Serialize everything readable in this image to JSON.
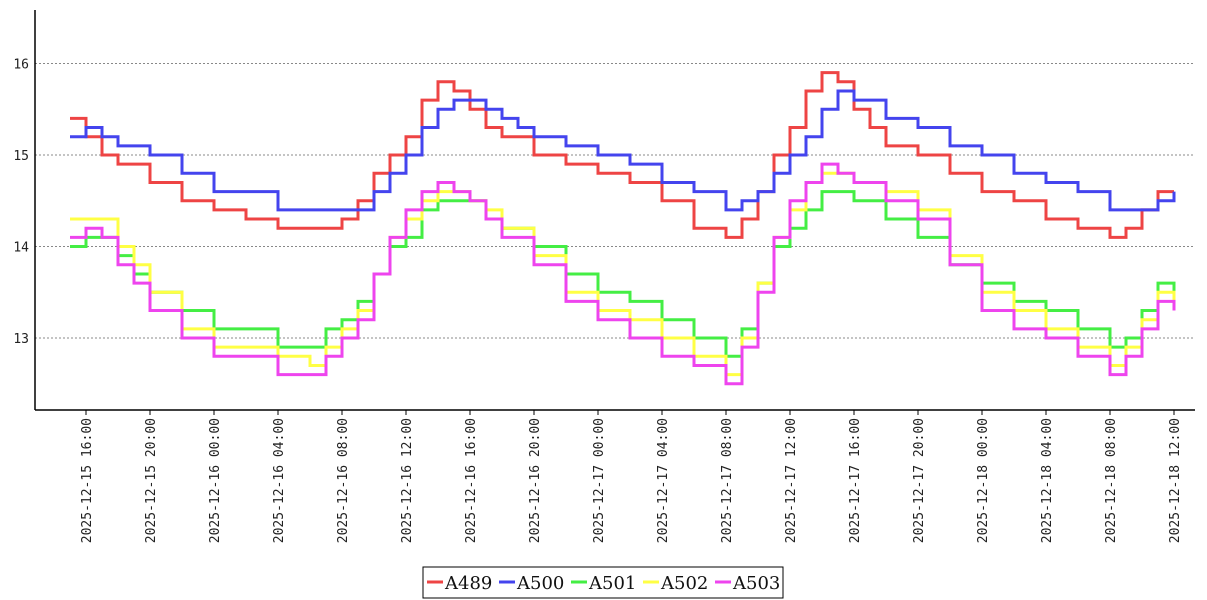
{
  "chart_data": {
    "type": "line",
    "title": "",
    "xlabel": "",
    "ylabel": "",
    "x_range": [
      "2025-12-15 14:00",
      "2025-12-18 12:00"
    ],
    "ylim": [
      12.2,
      16.6
    ],
    "yticks": [
      13,
      14,
      15,
      16
    ],
    "grid": "horizontal dotted",
    "legend_position": "bottom",
    "x_tick_labels": [
      "2025-12-15 16:00",
      "2025-12-15 20:00",
      "2025-12-16 00:00",
      "2025-12-16 04:00",
      "2025-12-16 08:00",
      "2025-12-16 12:00",
      "2025-12-16 16:00",
      "2025-12-16 20:00",
      "2025-12-17 00:00",
      "2025-12-17 04:00",
      "2025-12-17 08:00",
      "2025-12-17 12:00",
      "2025-12-17 16:00",
      "2025-12-17 20:00",
      "2025-12-18 00:00",
      "2025-12-18 04:00",
      "2025-12-18 08:00",
      "2025-12-18 12:00"
    ],
    "series": [
      {
        "name": "A489",
        "color": "#ee4444",
        "points": [
          [
            "2025-12-15 15:00",
            15.4
          ],
          [
            "2025-12-15 16:00",
            15.2
          ],
          [
            "2025-12-15 17:00",
            15.0
          ],
          [
            "2025-12-15 18:00",
            14.9
          ],
          [
            "2025-12-15 20:00",
            14.7
          ],
          [
            "2025-12-15 22:00",
            14.5
          ],
          [
            "2025-12-16 00:00",
            14.4
          ],
          [
            "2025-12-16 02:00",
            14.3
          ],
          [
            "2025-12-16 04:00",
            14.2
          ],
          [
            "2025-12-16 06:00",
            14.2
          ],
          [
            "2025-12-16 08:00",
            14.3
          ],
          [
            "2025-12-16 09:00",
            14.5
          ],
          [
            "2025-12-16 10:00",
            14.8
          ],
          [
            "2025-12-16 11:00",
            15.0
          ],
          [
            "2025-12-16 12:00",
            15.2
          ],
          [
            "2025-12-16 13:00",
            15.6
          ],
          [
            "2025-12-16 14:00",
            15.8
          ],
          [
            "2025-12-16 15:00",
            15.7
          ],
          [
            "2025-12-16 16:00",
            15.5
          ],
          [
            "2025-12-16 17:00",
            15.3
          ],
          [
            "2025-12-16 18:00",
            15.2
          ],
          [
            "2025-12-16 20:00",
            15.0
          ],
          [
            "2025-12-16 22:00",
            14.9
          ],
          [
            "2025-12-17 00:00",
            14.8
          ],
          [
            "2025-12-17 02:00",
            14.7
          ],
          [
            "2025-12-17 04:00",
            14.5
          ],
          [
            "2025-12-17 06:00",
            14.2
          ],
          [
            "2025-12-17 08:00",
            14.1
          ],
          [
            "2025-12-17 09:00",
            14.3
          ],
          [
            "2025-12-17 10:00",
            14.6
          ],
          [
            "2025-12-17 11:00",
            15.0
          ],
          [
            "2025-12-17 12:00",
            15.3
          ],
          [
            "2025-12-17 13:00",
            15.7
          ],
          [
            "2025-12-17 14:00",
            15.9
          ],
          [
            "2025-12-17 15:00",
            15.8
          ],
          [
            "2025-12-17 16:00",
            15.5
          ],
          [
            "2025-12-17 17:00",
            15.3
          ],
          [
            "2025-12-17 18:00",
            15.1
          ],
          [
            "2025-12-17 20:00",
            15.0
          ],
          [
            "2025-12-17 22:00",
            14.8
          ],
          [
            "2025-12-18 00:00",
            14.6
          ],
          [
            "2025-12-18 02:00",
            14.5
          ],
          [
            "2025-12-18 04:00",
            14.3
          ],
          [
            "2025-12-18 06:00",
            14.2
          ],
          [
            "2025-12-18 08:00",
            14.1
          ],
          [
            "2025-12-18 09:00",
            14.2
          ],
          [
            "2025-12-18 10:00",
            14.4
          ],
          [
            "2025-12-18 11:00",
            14.6
          ],
          [
            "2025-12-18 12:00",
            14.6
          ]
        ]
      },
      {
        "name": "A500",
        "color": "#4444ee",
        "points": [
          [
            "2025-12-15 15:00",
            15.2
          ],
          [
            "2025-12-15 16:00",
            15.3
          ],
          [
            "2025-12-15 17:00",
            15.2
          ],
          [
            "2025-12-15 18:00",
            15.1
          ],
          [
            "2025-12-15 20:00",
            15.0
          ],
          [
            "2025-12-15 22:00",
            14.8
          ],
          [
            "2025-12-16 00:00",
            14.6
          ],
          [
            "2025-12-16 02:00",
            14.6
          ],
          [
            "2025-12-16 04:00",
            14.4
          ],
          [
            "2025-12-16 06:00",
            14.4
          ],
          [
            "2025-12-16 08:00",
            14.4
          ],
          [
            "2025-12-16 10:00",
            14.6
          ],
          [
            "2025-12-16 11:00",
            14.8
          ],
          [
            "2025-12-16 12:00",
            15.0
          ],
          [
            "2025-12-16 13:00",
            15.3
          ],
          [
            "2025-12-16 14:00",
            15.5
          ],
          [
            "2025-12-16 15:00",
            15.6
          ],
          [
            "2025-12-16 16:00",
            15.6
          ],
          [
            "2025-12-16 17:00",
            15.5
          ],
          [
            "2025-12-16 18:00",
            15.4
          ],
          [
            "2025-12-16 19:00",
            15.3
          ],
          [
            "2025-12-16 20:00",
            15.2
          ],
          [
            "2025-12-16 22:00",
            15.1
          ],
          [
            "2025-12-17 00:00",
            15.0
          ],
          [
            "2025-12-17 02:00",
            14.9
          ],
          [
            "2025-12-17 04:00",
            14.7
          ],
          [
            "2025-12-17 06:00",
            14.6
          ],
          [
            "2025-12-17 08:00",
            14.4
          ],
          [
            "2025-12-17 09:00",
            14.5
          ],
          [
            "2025-12-17 10:00",
            14.6
          ],
          [
            "2025-12-17 11:00",
            14.8
          ],
          [
            "2025-12-17 12:00",
            15.0
          ],
          [
            "2025-12-17 13:00",
            15.2
          ],
          [
            "2025-12-17 14:00",
            15.5
          ],
          [
            "2025-12-17 15:00",
            15.7
          ],
          [
            "2025-12-17 16:00",
            15.6
          ],
          [
            "2025-12-17 18:00",
            15.4
          ],
          [
            "2025-12-17 20:00",
            15.3
          ],
          [
            "2025-12-17 22:00",
            15.1
          ],
          [
            "2025-12-18 00:00",
            15.0
          ],
          [
            "2025-12-18 02:00",
            14.8
          ],
          [
            "2025-12-18 04:00",
            14.7
          ],
          [
            "2025-12-18 06:00",
            14.6
          ],
          [
            "2025-12-18 08:00",
            14.4
          ],
          [
            "2025-12-18 10:00",
            14.4
          ],
          [
            "2025-12-18 11:00",
            14.5
          ],
          [
            "2025-12-18 12:00",
            14.6
          ]
        ]
      },
      {
        "name": "A501",
        "color": "#44ee44",
        "points": [
          [
            "2025-12-15 15:00",
            14.0
          ],
          [
            "2025-12-15 16:00",
            14.1
          ],
          [
            "2025-12-15 17:00",
            14.1
          ],
          [
            "2025-12-15 18:00",
            13.9
          ],
          [
            "2025-12-15 19:00",
            13.7
          ],
          [
            "2025-12-15 20:00",
            13.5
          ],
          [
            "2025-12-15 22:00",
            13.3
          ],
          [
            "2025-12-16 00:00",
            13.1
          ],
          [
            "2025-12-16 02:00",
            13.1
          ],
          [
            "2025-12-16 04:00",
            12.9
          ],
          [
            "2025-12-16 06:00",
            12.9
          ],
          [
            "2025-12-16 07:00",
            13.1
          ],
          [
            "2025-12-16 08:00",
            13.2
          ],
          [
            "2025-12-16 09:00",
            13.4
          ],
          [
            "2025-12-16 10:00",
            13.7
          ],
          [
            "2025-12-16 11:00",
            14.0
          ],
          [
            "2025-12-16 12:00",
            14.1
          ],
          [
            "2025-12-16 13:00",
            14.4
          ],
          [
            "2025-12-16 14:00",
            14.5
          ],
          [
            "2025-12-16 15:00",
            14.5
          ],
          [
            "2025-12-16 16:00",
            14.5
          ],
          [
            "2025-12-16 17:00",
            14.3
          ],
          [
            "2025-12-16 18:00",
            14.2
          ],
          [
            "2025-12-16 20:00",
            14.0
          ],
          [
            "2025-12-16 22:00",
            13.7
          ],
          [
            "2025-12-17 00:00",
            13.5
          ],
          [
            "2025-12-17 02:00",
            13.4
          ],
          [
            "2025-12-17 04:00",
            13.2
          ],
          [
            "2025-12-17 06:00",
            13.0
          ],
          [
            "2025-12-17 08:00",
            12.8
          ],
          [
            "2025-12-17 09:00",
            13.1
          ],
          [
            "2025-12-17 10:00",
            13.6
          ],
          [
            "2025-12-17 11:00",
            14.0
          ],
          [
            "2025-12-17 12:00",
            14.2
          ],
          [
            "2025-12-17 13:00",
            14.4
          ],
          [
            "2025-12-17 14:00",
            14.6
          ],
          [
            "2025-12-17 15:00",
            14.6
          ],
          [
            "2025-12-17 16:00",
            14.5
          ],
          [
            "2025-12-17 18:00",
            14.3
          ],
          [
            "2025-12-17 20:00",
            14.1
          ],
          [
            "2025-12-17 22:00",
            13.8
          ],
          [
            "2025-12-18 00:00",
            13.6
          ],
          [
            "2025-12-18 02:00",
            13.4
          ],
          [
            "2025-12-18 04:00",
            13.3
          ],
          [
            "2025-12-18 06:00",
            13.1
          ],
          [
            "2025-12-18 08:00",
            12.9
          ],
          [
            "2025-12-18 09:00",
            13.0
          ],
          [
            "2025-12-18 10:00",
            13.3
          ],
          [
            "2025-12-18 11:00",
            13.6
          ],
          [
            "2025-12-18 12:00",
            13.4
          ]
        ]
      },
      {
        "name": "A502",
        "color": "#ffff44",
        "points": [
          [
            "2025-12-15 15:00",
            14.3
          ],
          [
            "2025-12-15 16:00",
            14.3
          ],
          [
            "2025-12-15 17:00",
            14.3
          ],
          [
            "2025-12-15 18:00",
            14.0
          ],
          [
            "2025-12-15 19:00",
            13.8
          ],
          [
            "2025-12-15 20:00",
            13.5
          ],
          [
            "2025-12-15 22:00",
            13.1
          ],
          [
            "2025-12-16 00:00",
            12.9
          ],
          [
            "2025-12-16 02:00",
            12.9
          ],
          [
            "2025-12-16 04:00",
            12.8
          ],
          [
            "2025-12-16 06:00",
            12.7
          ],
          [
            "2025-12-16 07:00",
            12.9
          ],
          [
            "2025-12-16 08:00",
            13.1
          ],
          [
            "2025-12-16 09:00",
            13.3
          ],
          [
            "2025-12-16 10:00",
            13.7
          ],
          [
            "2025-12-16 11:00",
            14.1
          ],
          [
            "2025-12-16 12:00",
            14.3
          ],
          [
            "2025-12-16 13:00",
            14.5
          ],
          [
            "2025-12-16 14:00",
            14.6
          ],
          [
            "2025-12-16 15:00",
            14.6
          ],
          [
            "2025-12-16 16:00",
            14.5
          ],
          [
            "2025-12-16 17:00",
            14.4
          ],
          [
            "2025-12-16 18:00",
            14.2
          ],
          [
            "2025-12-16 20:00",
            13.9
          ],
          [
            "2025-12-16 22:00",
            13.5
          ],
          [
            "2025-12-17 00:00",
            13.3
          ],
          [
            "2025-12-17 02:00",
            13.2
          ],
          [
            "2025-12-17 04:00",
            13.0
          ],
          [
            "2025-12-17 06:00",
            12.8
          ],
          [
            "2025-12-17 08:00",
            12.6
          ],
          [
            "2025-12-17 09:00",
            13.0
          ],
          [
            "2025-12-17 10:00",
            13.6
          ],
          [
            "2025-12-17 11:00",
            14.1
          ],
          [
            "2025-12-17 12:00",
            14.4
          ],
          [
            "2025-12-17 13:00",
            14.7
          ],
          [
            "2025-12-17 14:00",
            14.8
          ],
          [
            "2025-12-17 15:00",
            14.8
          ],
          [
            "2025-12-17 16:00",
            14.7
          ],
          [
            "2025-12-17 18:00",
            14.6
          ],
          [
            "2025-12-17 20:00",
            14.4
          ],
          [
            "2025-12-17 22:00",
            13.9
          ],
          [
            "2025-12-18 00:00",
            13.5
          ],
          [
            "2025-12-18 02:00",
            13.3
          ],
          [
            "2025-12-18 04:00",
            13.1
          ],
          [
            "2025-12-18 06:00",
            12.9
          ],
          [
            "2025-12-18 08:00",
            12.7
          ],
          [
            "2025-12-18 09:00",
            12.9
          ],
          [
            "2025-12-18 10:00",
            13.2
          ],
          [
            "2025-12-18 11:00",
            13.5
          ],
          [
            "2025-12-18 12:00",
            13.4
          ]
        ]
      },
      {
        "name": "A503",
        "color": "#ee44ee",
        "points": [
          [
            "2025-12-15 15:00",
            14.1
          ],
          [
            "2025-12-15 16:00",
            14.2
          ],
          [
            "2025-12-15 17:00",
            14.1
          ],
          [
            "2025-12-15 18:00",
            13.8
          ],
          [
            "2025-12-15 19:00",
            13.6
          ],
          [
            "2025-12-15 20:00",
            13.3
          ],
          [
            "2025-12-15 22:00",
            13.0
          ],
          [
            "2025-12-16 00:00",
            12.8
          ],
          [
            "2025-12-16 02:00",
            12.8
          ],
          [
            "2025-12-16 04:00",
            12.6
          ],
          [
            "2025-12-16 06:00",
            12.6
          ],
          [
            "2025-12-16 07:00",
            12.8
          ],
          [
            "2025-12-16 08:00",
            13.0
          ],
          [
            "2025-12-16 09:00",
            13.2
          ],
          [
            "2025-12-16 10:00",
            13.7
          ],
          [
            "2025-12-16 11:00",
            14.1
          ],
          [
            "2025-12-16 12:00",
            14.4
          ],
          [
            "2025-12-16 13:00",
            14.6
          ],
          [
            "2025-12-16 14:00",
            14.7
          ],
          [
            "2025-12-16 15:00",
            14.6
          ],
          [
            "2025-12-16 16:00",
            14.5
          ],
          [
            "2025-12-16 17:00",
            14.3
          ],
          [
            "2025-12-16 18:00",
            14.1
          ],
          [
            "2025-12-16 20:00",
            13.8
          ],
          [
            "2025-12-16 22:00",
            13.4
          ],
          [
            "2025-12-17 00:00",
            13.2
          ],
          [
            "2025-12-17 02:00",
            13.0
          ],
          [
            "2025-12-17 04:00",
            12.8
          ],
          [
            "2025-12-17 06:00",
            12.7
          ],
          [
            "2025-12-17 08:00",
            12.5
          ],
          [
            "2025-12-17 09:00",
            12.9
          ],
          [
            "2025-12-17 10:00",
            13.5
          ],
          [
            "2025-12-17 11:00",
            14.1
          ],
          [
            "2025-12-17 12:00",
            14.5
          ],
          [
            "2025-12-17 13:00",
            14.7
          ],
          [
            "2025-12-17 14:00",
            14.9
          ],
          [
            "2025-12-17 15:00",
            14.8
          ],
          [
            "2025-12-17 16:00",
            14.7
          ],
          [
            "2025-12-17 18:00",
            14.5
          ],
          [
            "2025-12-17 20:00",
            14.3
          ],
          [
            "2025-12-17 22:00",
            13.8
          ],
          [
            "2025-12-18 00:00",
            13.3
          ],
          [
            "2025-12-18 02:00",
            13.1
          ],
          [
            "2025-12-18 04:00",
            13.0
          ],
          [
            "2025-12-18 06:00",
            12.8
          ],
          [
            "2025-12-18 08:00",
            12.6
          ],
          [
            "2025-12-18 09:00",
            12.8
          ],
          [
            "2025-12-18 10:00",
            13.1
          ],
          [
            "2025-12-18 11:00",
            13.4
          ],
          [
            "2025-12-18 12:00",
            13.3
          ]
        ]
      }
    ]
  }
}
